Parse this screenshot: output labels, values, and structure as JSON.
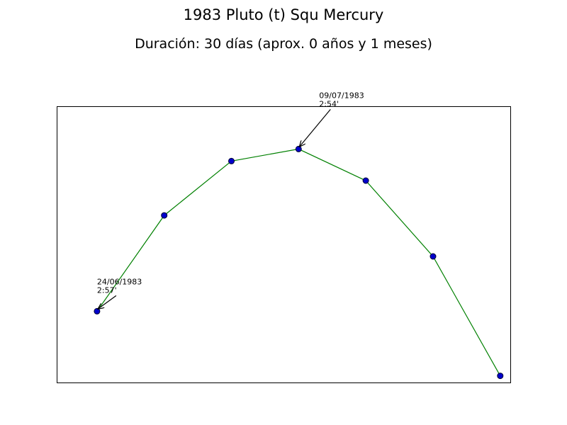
{
  "title": "1983 Pluto (t) Squ Mercury",
  "subtitle": "Duración: 30 días (aprox. 0 años y 1 meses)",
  "colors": {
    "line": "#008000",
    "marker_fill": "#0000cc",
    "marker_edge": "#000033",
    "axes": "#000000"
  },
  "chart_data": {
    "type": "line",
    "title": "1983 Pluto (t) Squ Mercury",
    "subtitle": "Duración: 30 días (aprox. 0 años y 1 meses)",
    "xlabel": "",
    "ylabel": "",
    "x_ticks_shown": false,
    "y_ticks_shown": false,
    "grid": false,
    "xlim": [
      -0.6,
      6.15
    ],
    "ylim": [
      2.54,
      3.16
    ],
    "series": [
      {
        "name": "",
        "marker": "circle",
        "x": [
          0,
          1,
          2,
          3,
          4,
          5,
          6
        ],
        "y": [
          2.7,
          2.915,
          3.037,
          3.064,
          2.993,
          2.823,
          2.555
        ]
      }
    ],
    "annotations": [
      {
        "point_index": 0,
        "date": "24/06/1983",
        "value": "2:57'"
      },
      {
        "point_index": 3,
        "date": "09/07/1983",
        "value": "2:54'"
      }
    ]
  }
}
